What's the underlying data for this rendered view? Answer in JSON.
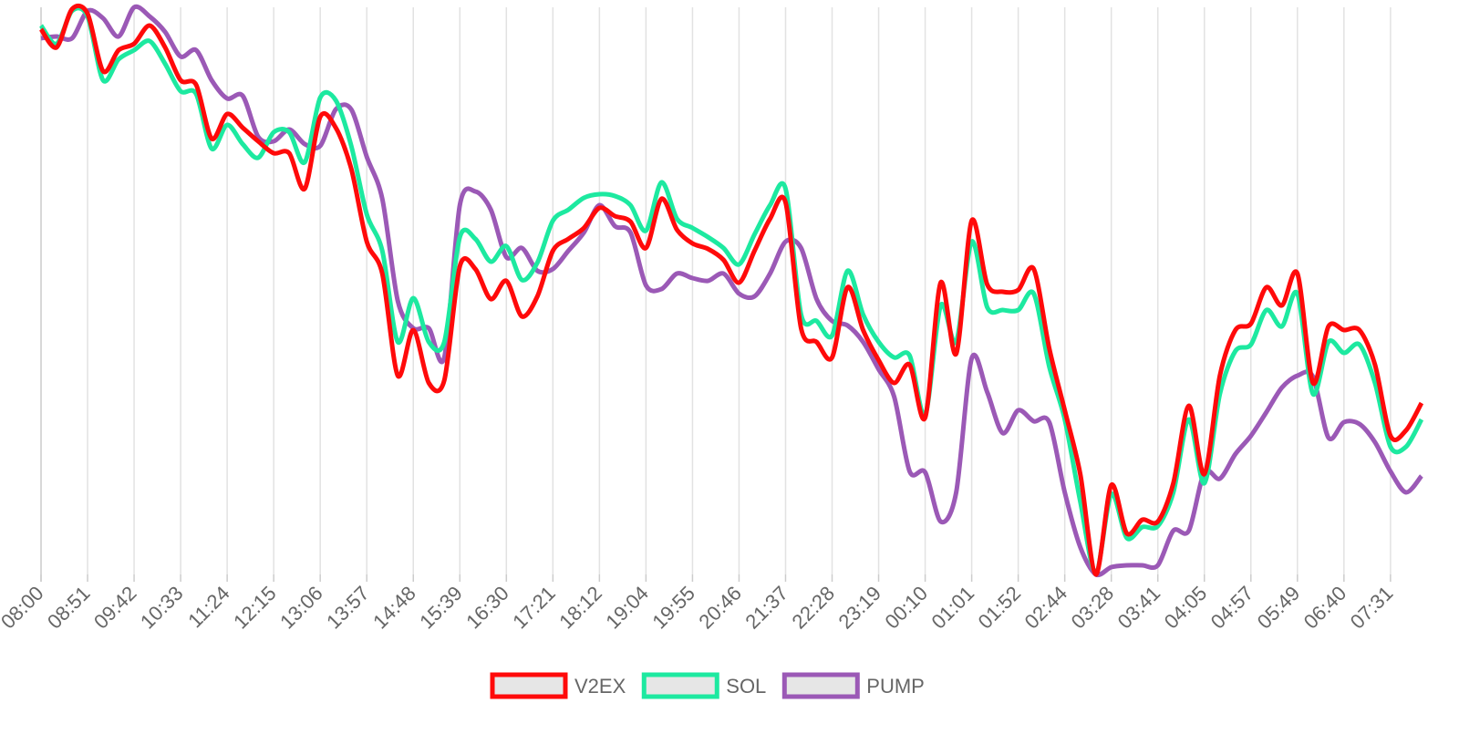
{
  "chart_data": {
    "type": "line",
    "categories": [
      "08:00",
      null,
      null,
      "08:51",
      null,
      null,
      "09:42",
      null,
      null,
      "10:33",
      null,
      null,
      "11:24",
      null,
      null,
      "12:15",
      null,
      null,
      "13:06",
      null,
      null,
      "13:57",
      null,
      null,
      "14:48",
      null,
      null,
      "15:39",
      null,
      null,
      "16:30",
      null,
      null,
      "17:21",
      null,
      null,
      "18:12",
      null,
      null,
      "19:04",
      null,
      null,
      "19:55",
      null,
      null,
      "20:46",
      null,
      null,
      "21:37",
      null,
      null,
      "22:28",
      null,
      null,
      "23:19",
      null,
      null,
      "00:10",
      null,
      null,
      "01:01",
      null,
      null,
      "01:52",
      null,
      null,
      "02:44",
      null,
      null,
      "03:28",
      null,
      null,
      "03:41",
      null,
      null,
      "04:05",
      null,
      null,
      "04:57",
      null,
      null,
      "05:49",
      null,
      null,
      "06:40",
      null,
      null,
      "07:31",
      null,
      null
    ],
    "series": [
      {
        "name": "V2EX",
        "color": "#ff0a0a",
        "values": [
          598,
          578,
          620,
          615,
          552,
          575,
          582,
          602,
          578,
          542,
          537,
          478,
          505,
          490,
          475,
          462,
          462,
          423,
          502,
          490,
          445,
          365,
          330,
          218,
          268,
          210,
          213,
          338,
          335,
          302,
          322,
          283,
          305,
          355,
          368,
          380,
          402,
          393,
          387,
          358,
          412,
          378,
          363,
          357,
          345,
          320,
          355,
          390,
          408,
          270,
          255,
          238,
          315,
          268,
          235,
          210,
          230,
          172,
          320,
          242,
          388,
          318,
          310,
          312,
          335,
          248,
          180,
          110,
          0,
          98,
          45,
          60,
          58,
          100,
          185,
          110,
          218,
          268,
          275,
          315,
          295,
          330,
          210,
          272,
          268,
          268,
          230,
          152,
          158,
          188
        ]
      },
      {
        "name": "SOL",
        "color": "#1de9a0",
        "values": [
          602,
          582,
          618,
          612,
          542,
          565,
          575,
          585,
          560,
          530,
          527,
          467,
          493,
          472,
          457,
          485,
          485,
          452,
          523,
          520,
          470,
          395,
          355,
          255,
          303,
          255,
          255,
          370,
          368,
          343,
          360,
          323,
          342,
          388,
          400,
          413,
          417,
          415,
          405,
          377,
          430,
          390,
          380,
          370,
          358,
          340,
          373,
          405,
          423,
          285,
          278,
          262,
          333,
          285,
          255,
          238,
          240,
          175,
          295,
          255,
          365,
          293,
          290,
          290,
          308,
          228,
          170,
          80,
          2,
          88,
          40,
          52,
          53,
          90,
          170,
          100,
          198,
          245,
          252,
          290,
          272,
          308,
          198,
          255,
          243,
          252,
          210,
          140,
          140,
          170
        ]
      },
      {
        "name": "PUMP",
        "color": "#9b59b6",
        "values": [
          588,
          590,
          588,
          618,
          610,
          590,
          622,
          612,
          595,
          568,
          575,
          542,
          522,
          525,
          480,
          475,
          488,
          472,
          470,
          510,
          510,
          458,
          412,
          300,
          270,
          270,
          238,
          405,
          420,
          400,
          348,
          358,
          333,
          335,
          355,
          375,
          405,
          382,
          375,
          317,
          313,
          330,
          325,
          322,
          330,
          308,
          305,
          330,
          365,
          358,
          302,
          278,
          273,
          255,
          225,
          195,
          113,
          112,
          58,
          90,
          237,
          200,
          155,
          180,
          168,
          167,
          90,
          30,
          0,
          8,
          10,
          10,
          10,
          48,
          48,
          112,
          105,
          132,
          152,
          178,
          205,
          218,
          217,
          150,
          167,
          165,
          145,
          113,
          90,
          108
        ]
      }
    ],
    "ylim": [
      0,
      622
    ],
    "grid": true,
    "legend": "bottom"
  }
}
